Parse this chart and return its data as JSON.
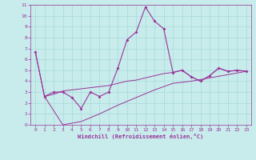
{
  "xlabel": "Windchill (Refroidissement éolien,°C)",
  "bg_color": "#c8ecec",
  "grid_color": "#a8d8d8",
  "line_color": "#993399",
  "xlim": [
    -0.5,
    23.5
  ],
  "ylim": [
    0,
    11
  ],
  "xticks": [
    0,
    1,
    2,
    3,
    4,
    5,
    6,
    7,
    8,
    9,
    10,
    11,
    12,
    13,
    14,
    15,
    16,
    17,
    18,
    19,
    20,
    21,
    22,
    23
  ],
  "yticks": [
    0,
    1,
    2,
    3,
    4,
    5,
    6,
    7,
    8,
    9,
    10,
    11
  ],
  "series1": [
    [
      0,
      6.7
    ],
    [
      1,
      2.6
    ],
    [
      2,
      3.0
    ],
    [
      3,
      3.0
    ],
    [
      4,
      2.5
    ],
    [
      5,
      1.5
    ],
    [
      6,
      3.0
    ],
    [
      7,
      2.6
    ],
    [
      8,
      3.0
    ],
    [
      9,
      5.2
    ],
    [
      10,
      7.8
    ],
    [
      11,
      8.5
    ],
    [
      12,
      10.8
    ],
    [
      13,
      9.5
    ],
    [
      14,
      8.8
    ],
    [
      15,
      4.8
    ],
    [
      16,
      5.0
    ],
    [
      17,
      4.4
    ],
    [
      18,
      4.0
    ],
    [
      19,
      4.5
    ],
    [
      20,
      5.2
    ],
    [
      21,
      4.9
    ],
    [
      22,
      5.0
    ],
    [
      23,
      4.9
    ]
  ],
  "series2": [
    [
      0,
      6.7
    ],
    [
      1,
      2.6
    ],
    [
      2,
      2.8
    ],
    [
      3,
      3.1
    ],
    [
      4,
      3.2
    ],
    [
      5,
      3.3
    ],
    [
      6,
      3.4
    ],
    [
      7,
      3.5
    ],
    [
      8,
      3.6
    ],
    [
      9,
      3.8
    ],
    [
      10,
      4.0
    ],
    [
      11,
      4.1
    ],
    [
      12,
      4.3
    ],
    [
      13,
      4.5
    ],
    [
      14,
      4.7
    ],
    [
      15,
      4.8
    ],
    [
      16,
      5.0
    ],
    [
      17,
      4.4
    ],
    [
      18,
      4.0
    ],
    [
      19,
      4.5
    ],
    [
      20,
      5.2
    ],
    [
      21,
      4.9
    ],
    [
      22,
      5.0
    ],
    [
      23,
      4.9
    ]
  ],
  "series3": [
    [
      1,
      2.6
    ],
    [
      3,
      0.0
    ],
    [
      5,
      0.3
    ],
    [
      7,
      1.0
    ],
    [
      9,
      1.8
    ],
    [
      11,
      2.5
    ],
    [
      13,
      3.2
    ],
    [
      15,
      3.8
    ],
    [
      17,
      4.0
    ],
    [
      19,
      4.3
    ],
    [
      21,
      4.6
    ],
    [
      23,
      4.9
    ]
  ]
}
